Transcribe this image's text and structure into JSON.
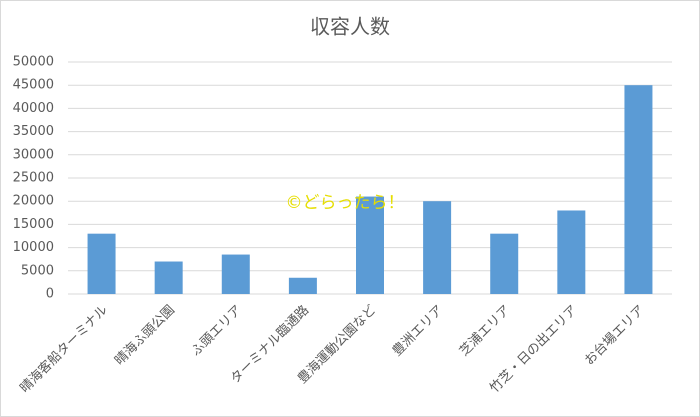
{
  "chart_data": {
    "type": "bar",
    "title": "収容人数",
    "categories": [
      "晴海客船ターミナル",
      "晴海ふ頭公園",
      "ふ頭エリア",
      "ターミナル臨通路",
      "豊海運動公園など",
      "豊洲エリア",
      "芝浦エリア",
      "竹芝・日の出エリア",
      "お台場エリア"
    ],
    "values": [
      13000,
      7000,
      8500,
      3500,
      21000,
      20000,
      13000,
      18000,
      45000
    ],
    "color": "#5b9bd5",
    "ylim": [
      0,
      50000
    ],
    "yticks": [
      0,
      5000,
      10000,
      15000,
      20000,
      25000,
      30000,
      35000,
      40000,
      45000,
      50000
    ],
    "grid": true,
    "annotation": "©どらったら！"
  }
}
